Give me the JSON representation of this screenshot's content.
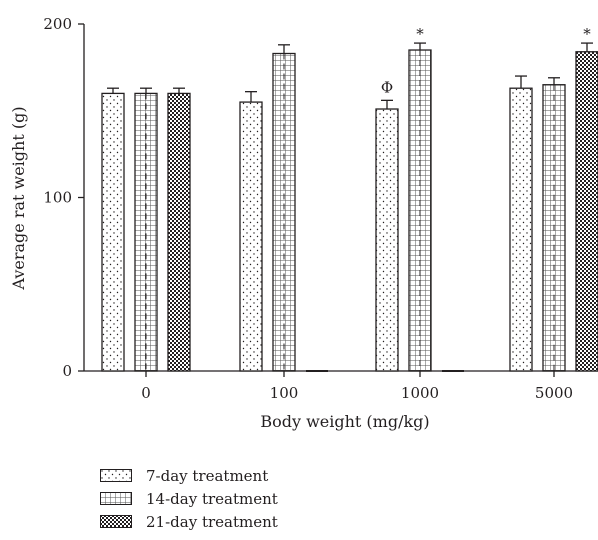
{
  "chart_data": {
    "type": "bar",
    "title": "",
    "xlabel": "Body weight (mg/kg)",
    "ylabel": "Average rat weight (g)",
    "categories": [
      "0",
      "100",
      "1000",
      "5000"
    ],
    "ylim": [
      0,
      200
    ],
    "yticks": [
      "0",
      "100",
      "200"
    ],
    "series": [
      {
        "name": "7-day treatment",
        "pattern": "dots",
        "values": [
          160,
          155,
          151,
          163
        ],
        "errors": [
          3,
          6,
          5,
          7
        ]
      },
      {
        "name": "14-day treatment",
        "pattern": "grid",
        "values": [
          160,
          183,
          185,
          165
        ],
        "errors": [
          3,
          5,
          4,
          4
        ]
      },
      {
        "name": "21-day treatment",
        "pattern": "checkerboard",
        "values": [
          160,
          0,
          0,
          184
        ],
        "errors": [
          3,
          0,
          0,
          5
        ]
      }
    ],
    "annotations": [
      {
        "category": "1000",
        "series": "7-day treatment",
        "text": "Φ"
      },
      {
        "category": "1000",
        "series": "14-day treatment",
        "text": "*"
      },
      {
        "category": "5000",
        "series": "21-day treatment",
        "text": "*"
      }
    ],
    "grid": false,
    "legend_position": "bottom-left"
  },
  "colors": {
    "ink": "#231f20",
    "background": "#ffffff"
  }
}
